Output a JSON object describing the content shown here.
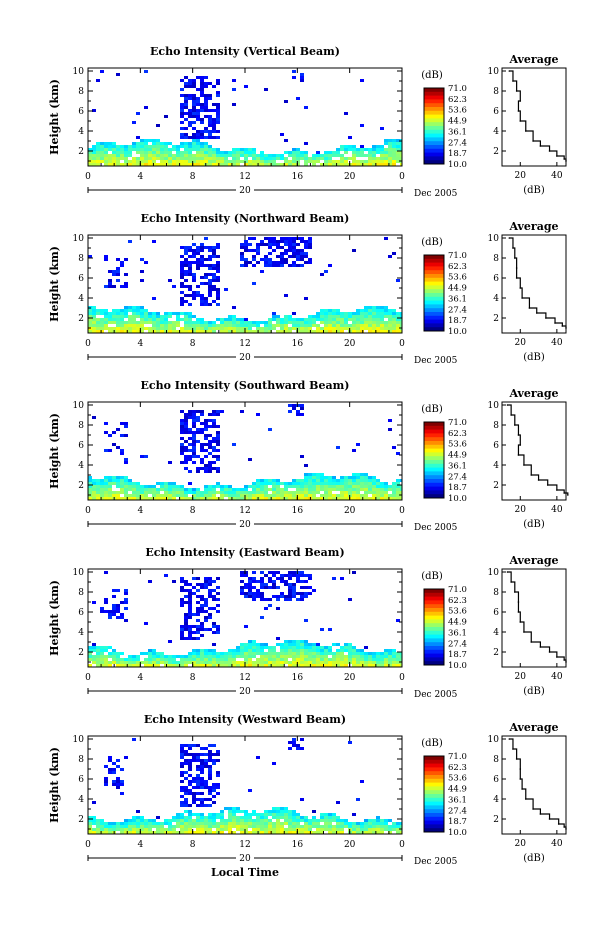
{
  "figure": {
    "xlabel": "Local Time",
    "colorbar_unit": "(dB)",
    "colorbar_ticks": [
      "71.0",
      "62.3",
      "53.6",
      "44.9",
      "36.1",
      "27.4",
      "18.7",
      "10.0"
    ],
    "avg_title": "Average",
    "avg_xlabel": "(dB)",
    "date_label": "Dec 2005",
    "day_label": "20",
    "ylabel": "Height (km)"
  },
  "chart_data": [
    {
      "type": "heatmap",
      "title": "Echo Intensity (Vertical Beam)",
      "xlabel": "Local Time",
      "ylabel": "Height (km)",
      "x_ticks": [
        "0",
        "4",
        "8",
        "12",
        "16",
        "20",
        "0"
      ],
      "y_ticks": [
        "2",
        "4",
        "6",
        "8",
        "10"
      ],
      "xlim": [
        0,
        24
      ],
      "ylim": [
        0.5,
        10.3
      ],
      "colorbar": {
        "label": "(dB)",
        "range": [
          10.0,
          71.0
        ]
      },
      "average_profile": {
        "title": "Average",
        "xlabel": "(dB)",
        "x_ticks": [
          "20",
          "40"
        ],
        "xlim": [
          10,
          45
        ],
        "height": [
          10,
          9,
          8,
          7,
          6,
          5,
          4,
          3,
          2.5,
          2,
          1.5,
          1.2,
          1
        ],
        "db": [
          14,
          16,
          18,
          20,
          19,
          20,
          23,
          27,
          31,
          36,
          40,
          44,
          45
        ]
      }
    },
    {
      "type": "heatmap",
      "title": "Echo Intensity (Northward Beam)",
      "xlabel": "Local Time",
      "ylabel": "Height (km)",
      "x_ticks": [
        "0",
        "4",
        "8",
        "12",
        "16",
        "20",
        "0"
      ],
      "y_ticks": [
        "2",
        "4",
        "6",
        "8",
        "10"
      ],
      "xlim": [
        0,
        24
      ],
      "ylim": [
        0.5,
        10.3
      ],
      "colorbar": {
        "label": "(dB)",
        "range": [
          10.0,
          71.0
        ]
      },
      "average_profile": {
        "title": "Average",
        "xlabel": "(dB)",
        "x_ticks": [
          "20",
          "40"
        ],
        "xlim": [
          10,
          45
        ],
        "height": [
          10,
          9,
          8,
          7,
          6,
          5,
          4,
          3,
          2.5,
          2,
          1.5,
          1.2,
          1
        ],
        "db": [
          14,
          16,
          17,
          18,
          18,
          20,
          21,
          25,
          29,
          34,
          39,
          43,
          45
        ]
      }
    },
    {
      "type": "heatmap",
      "title": "Echo Intensity (Southward Beam)",
      "xlabel": "Local Time",
      "ylabel": "Height (km)",
      "x_ticks": [
        "0",
        "4",
        "8",
        "12",
        "16",
        "20",
        "0"
      ],
      "y_ticks": [
        "2",
        "4",
        "6",
        "8",
        "10"
      ],
      "xlim": [
        0,
        24
      ],
      "ylim": [
        0.5,
        10.3
      ],
      "colorbar": {
        "label": "(dB)",
        "range": [
          10.0,
          71.0
        ]
      },
      "average_profile": {
        "title": "Average",
        "xlabel": "(dB)",
        "x_ticks": [
          "20",
          "40"
        ],
        "xlim": [
          10,
          45
        ],
        "height": [
          10,
          9,
          8,
          7,
          6,
          5,
          4,
          3,
          2.5,
          2,
          1.5,
          1.2,
          1
        ],
        "db": [
          13,
          15,
          17,
          19,
          20,
          19,
          22,
          26,
          30,
          35,
          40,
          44,
          46
        ]
      }
    },
    {
      "type": "heatmap",
      "title": "Echo Intensity (Eastward Beam)",
      "xlabel": "Local Time",
      "ylabel": "Height (km)",
      "x_ticks": [
        "0",
        "4",
        "8",
        "12",
        "16",
        "20",
        "0"
      ],
      "y_ticks": [
        "2",
        "4",
        "6",
        "8",
        "10"
      ],
      "xlim": [
        0,
        24
      ],
      "ylim": [
        0.5,
        10.3
      ],
      "colorbar": {
        "label": "(dB)",
        "range": [
          10.0,
          71.0
        ]
      },
      "average_profile": {
        "title": "Average",
        "xlabel": "(dB)",
        "x_ticks": [
          "20",
          "40"
        ],
        "xlim": [
          10,
          45
        ],
        "height": [
          10,
          9,
          8,
          7,
          6,
          5,
          4,
          3,
          2.5,
          2,
          1.5,
          1.2,
          1
        ],
        "db": [
          13,
          15,
          17,
          19,
          19,
          20,
          22,
          26,
          31,
          36,
          40,
          44,
          45
        ]
      }
    },
    {
      "type": "heatmap",
      "title": "Echo Intensity (Westward Beam)",
      "xlabel": "Local Time",
      "ylabel": "Height (km)",
      "x_ticks": [
        "0",
        "4",
        "8",
        "12",
        "16",
        "20",
        "0"
      ],
      "y_ticks": [
        "2",
        "4",
        "6",
        "8",
        "10"
      ],
      "xlim": [
        0,
        24
      ],
      "ylim": [
        0.5,
        10.3
      ],
      "colorbar": {
        "label": "(dB)",
        "range": [
          10.0,
          71.0
        ]
      },
      "average_profile": {
        "title": "Average",
        "xlabel": "(dB)",
        "x_ticks": [
          "20",
          "40"
        ],
        "xlim": [
          10,
          45
        ],
        "height": [
          10,
          9,
          8,
          7,
          6,
          5,
          4,
          3,
          2.5,
          2,
          1.5,
          1.2,
          1
        ],
        "db": [
          14,
          16,
          18,
          20,
          20,
          21,
          23,
          27,
          31,
          36,
          41,
          44,
          45
        ]
      }
    }
  ]
}
